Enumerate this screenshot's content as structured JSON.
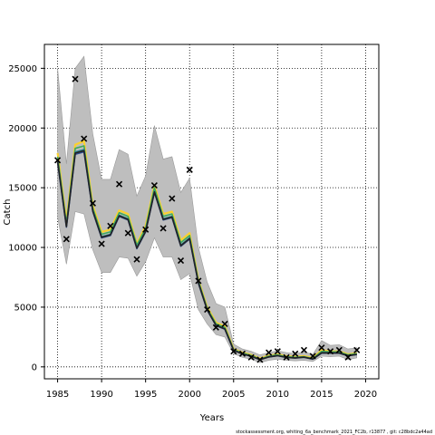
{
  "chart_data": {
    "type": "line",
    "xlabel": "Years",
    "ylabel": "Catch",
    "xlim": [
      1983.5,
      2021.5
    ],
    "ylim": [
      -1000,
      27000
    ],
    "x_ticks": [
      1985,
      1990,
      1995,
      2000,
      2005,
      2010,
      2015,
      2020
    ],
    "y_ticks": [
      0,
      5000,
      10000,
      15000,
      20000,
      25000
    ],
    "grid": true,
    "grid_style": "dotted",
    "footnote": "stockassessment.org, whiting_6a_benchmark_2021_FC2b, r13877 , git: c28bdc2a44ad",
    "years": [
      1985,
      1986,
      1987,
      1988,
      1989,
      1990,
      1991,
      1992,
      1993,
      1994,
      1995,
      1996,
      1997,
      1998,
      1999,
      2000,
      2001,
      2002,
      2003,
      2004,
      2005,
      2006,
      2007,
      2008,
      2009,
      2010,
      2011,
      2012,
      2013,
      2014,
      2015,
      2016,
      2017,
      2018,
      2019
    ],
    "band": {
      "color": "#bebebe",
      "lower": [
        12500,
        8600,
        13000,
        12800,
        9800,
        7900,
        7900,
        9200,
        9100,
        7600,
        8800,
        10800,
        9200,
        9200,
        7300,
        7800,
        4800,
        3600,
        2700,
        2500,
        1100,
        800,
        650,
        350,
        550,
        650,
        550,
        500,
        550,
        450,
        900,
        850,
        900,
        600,
        750
      ],
      "upper": [
        25000,
        17000,
        25000,
        26000,
        19500,
        15700,
        15700,
        18200,
        17800,
        14300,
        16000,
        20200,
        17400,
        17600,
        14600,
        15800,
        10000,
        7100,
        5300,
        5000,
        1900,
        1500,
        1300,
        1000,
        1200,
        1350,
        1200,
        1100,
        1250,
        1050,
        2200,
        1800,
        1850,
        1500,
        1600
      ]
    },
    "series": [
      {
        "color": "#fbd12e",
        "values": [
          17900,
          12200,
          18600,
          18900,
          13500,
          11300,
          11500,
          13100,
          12800,
          10300,
          11800,
          15200,
          12800,
          13000,
          10600,
          11200,
          7300,
          5000,
          3700,
          3400,
          1500,
          1200,
          1000,
          700,
          950,
          1050,
          900,
          850,
          900,
          750,
          1400,
          1300,
          1300,
          1050,
          1150
        ]
      },
      {
        "color": "#3da95c",
        "values": [
          17600,
          12000,
          18300,
          18500,
          13300,
          11100,
          11300,
          12900,
          12600,
          10200,
          11600,
          15000,
          12600,
          12800,
          10400,
          11000,
          7200,
          4900,
          3600,
          3300,
          1450,
          1150,
          950,
          650,
          900,
          1000,
          850,
          800,
          850,
          700,
          1300,
          1250,
          1250,
          1000,
          1100
        ]
      },
      {
        "color": "#2d8392",
        "values": [
          17300,
          11800,
          18000,
          18200,
          13100,
          10900,
          11100,
          12700,
          12400,
          10000,
          11400,
          14700,
          12400,
          12600,
          10200,
          10800,
          7100,
          4800,
          3500,
          3200,
          1400,
          1100,
          900,
          620,
          850,
          950,
          800,
          760,
          820,
          670,
          1200,
          1200,
          1180,
          950,
          1050
        ]
      },
      {
        "color": "#2a4b8d",
        "values": [
          17100,
          11700,
          17800,
          18000,
          13000,
          10800,
          11000,
          12600,
          12300,
          9900,
          11300,
          14600,
          12300,
          12500,
          10100,
          10700,
          7000,
          4750,
          3450,
          3150,
          1380,
          1080,
          880,
          600,
          830,
          930,
          780,
          740,
          800,
          650,
          1150,
          1150,
          1150,
          930,
          1030
        ]
      },
      {
        "color": "#222222",
        "values": [
          17200,
          11750,
          17900,
          18100,
          13050,
          10850,
          11050,
          12650,
          12350,
          9950,
          11350,
          14650,
          12350,
          12550,
          10150,
          10750,
          7050,
          4780,
          3480,
          3180,
          1390,
          1090,
          890,
          610,
          840,
          940,
          790,
          750,
          810,
          660,
          1180,
          1170,
          1160,
          940,
          1040
        ]
      }
    ],
    "observed": {
      "marker": "x",
      "values": [
        17300,
        10700,
        24100,
        19100,
        13700,
        10300,
        11800,
        15300,
        11200,
        9000,
        11500,
        15200,
        11600,
        14100,
        8900,
        16500,
        7200,
        4800,
        3300,
        3600,
        1300,
        1100,
        800,
        600,
        1200,
        1300,
        800,
        1100,
        1400,
        900,
        1600,
        1300,
        1400,
        800,
        1400
      ]
    }
  }
}
